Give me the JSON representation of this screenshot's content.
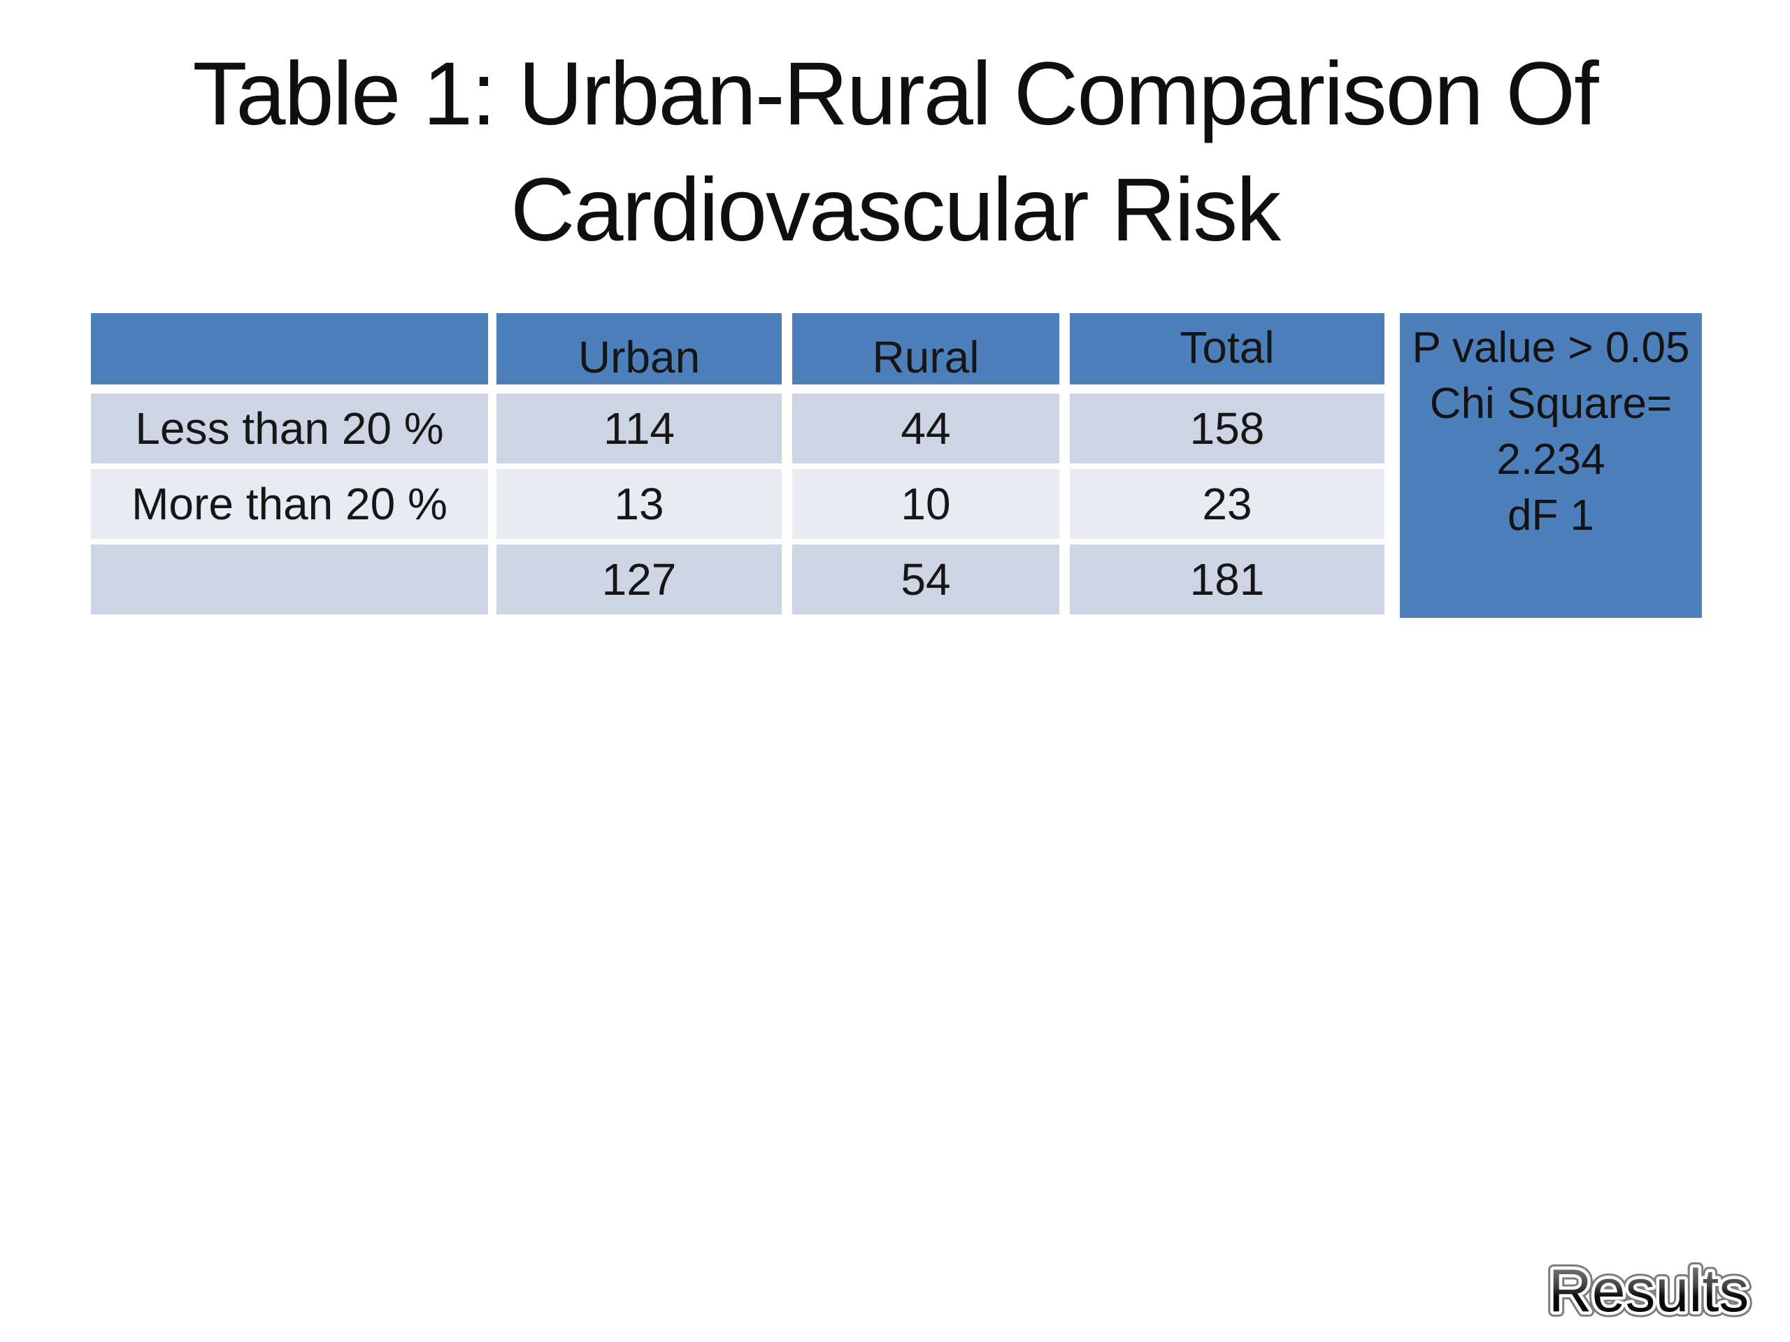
{
  "title": {
    "line1": "Table 1: Urban-Rural Comparison Of",
    "line2": "Cardiovascular Risk"
  },
  "table": {
    "columns": [
      "",
      "Urban",
      "Rural",
      "Total"
    ],
    "rows": [
      {
        "label": "Less than 20 %",
        "urban": "114",
        "rural": "44",
        "total": "158"
      },
      {
        "label": "More than 20 %",
        "urban": "13",
        "rural": "10",
        "total": "23"
      },
      {
        "label": "",
        "urban": "127",
        "rural": "54",
        "total": "181"
      }
    ],
    "stats": {
      "line1": "P value > 0.05",
      "line2": "Chi Square=",
      "line3": "2.234",
      "line4": "dF 1"
    }
  },
  "footer": {
    "results_label": "Results"
  },
  "colors": {
    "header_blue": "#4d7fba",
    "row_odd": "#cdd4e3",
    "row_even": "#e9ebf3",
    "background": "#ffffff",
    "text": "#141414"
  }
}
